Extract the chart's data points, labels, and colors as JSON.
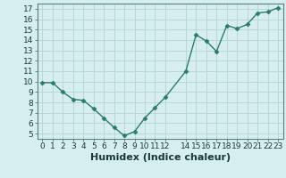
{
  "x": [
    0,
    1,
    2,
    3,
    4,
    5,
    6,
    7,
    8,
    9,
    10,
    11,
    12,
    14,
    15,
    16,
    17,
    18,
    19,
    20,
    21,
    22,
    23
  ],
  "y": [
    9.9,
    9.9,
    9.0,
    8.3,
    8.2,
    7.4,
    6.5,
    5.6,
    4.8,
    5.2,
    6.5,
    7.5,
    8.5,
    11.0,
    14.5,
    13.9,
    12.9,
    15.4,
    15.1,
    15.5,
    16.6,
    16.7,
    17.1
  ],
  "line_color": "#2d7a6e",
  "marker": "D",
  "marker_size": 2.5,
  "bg_color": "#d6eeee",
  "grid_color": "#b8d8d8",
  "xlabel": "Humidex (Indice chaleur)",
  "xlim": [
    -0.5,
    23.5
  ],
  "ylim": [
    4.5,
    17.5
  ],
  "xticks": [
    0,
    1,
    2,
    3,
    4,
    5,
    6,
    7,
    8,
    9,
    10,
    11,
    12,
    14,
    15,
    16,
    17,
    18,
    19,
    20,
    21,
    22,
    23
  ],
  "yticks": [
    5,
    6,
    7,
    8,
    9,
    10,
    11,
    12,
    13,
    14,
    15,
    16,
    17
  ],
  "tick_label_size": 6.5,
  "xlabel_size": 8,
  "lw": 1.0
}
